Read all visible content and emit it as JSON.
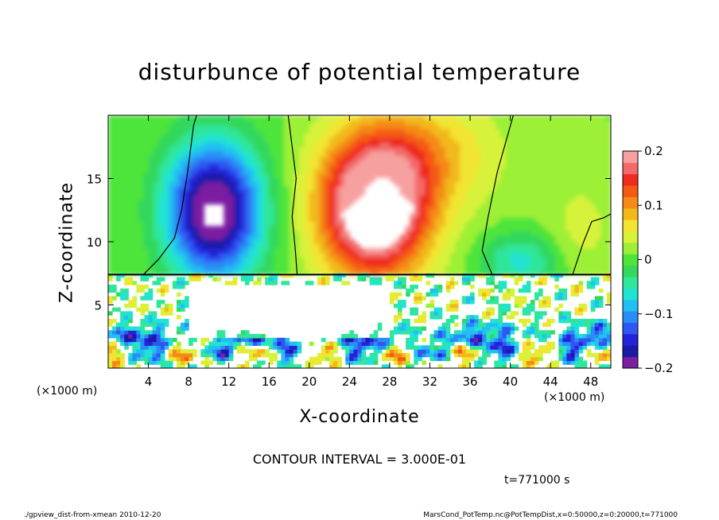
{
  "chart_data": {
    "type": "heatmap",
    "title": "disturbunce of potential temperature",
    "xlabel": "X-coordinate",
    "ylabel": "Z-coordinate",
    "x_unit_label": "(×1000 m)",
    "xlim": [
      0,
      50
    ],
    "ylim": [
      0,
      20
    ],
    "x_ticks": [
      4,
      8,
      12,
      16,
      20,
      24,
      28,
      32,
      36,
      40,
      44,
      48
    ],
    "y_ticks": [
      5,
      10,
      15
    ],
    "colorbar": {
      "range": [
        -0.2,
        0.2
      ],
      "ticks": [
        {
          "value": 0.2,
          "label": "0.2"
        },
        {
          "value": 0.1,
          "label": "0.1"
        },
        {
          "value": 0.0,
          "label": "0"
        },
        {
          "value": -0.1,
          "label": "−0.1"
        },
        {
          "value": -0.2,
          "label": "−0.2"
        }
      ],
      "colors": [
        "#7b1fa2",
        "#1a1aa6",
        "#2323d8",
        "#2f57f2",
        "#2a8cf7",
        "#22bff2",
        "#20e3d2",
        "#2fe69a",
        "#33d85c",
        "#4ee43a",
        "#9cf035",
        "#d8f23a",
        "#f2e430",
        "#f2b81c",
        "#f58a16",
        "#f55a14",
        "#ef2a1e",
        "#f36a6a",
        "#f7a0a0"
      ]
    },
    "contour_interval": "CONTOUR INTERVAL = 3.000E-01",
    "time": "t=771000 s"
  },
  "footer": {
    "left": "./gpview_dist-from-xmean  2010-12-20",
    "right": "MarsCond_PotTemp.nc@PotTempDist,x=0:50000,z=0:20000,t=771000"
  }
}
